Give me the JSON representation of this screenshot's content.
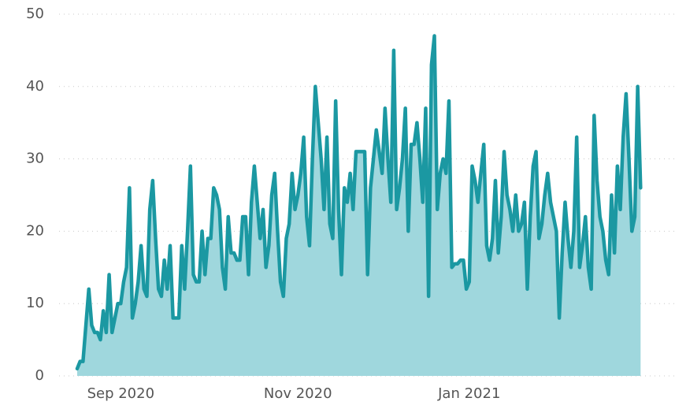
{
  "chart_data": {
    "type": "area",
    "values": [
      1,
      2,
      2,
      7,
      12,
      7,
      6,
      6,
      5,
      9,
      6,
      14,
      6,
      8,
      10,
      10,
      13,
      15,
      26,
      8,
      10,
      13,
      18,
      12,
      11,
      23,
      27,
      19,
      12,
      11,
      16,
      12,
      18,
      8,
      8,
      8,
      18,
      12,
      20,
      29,
      14,
      13,
      13,
      20,
      14,
      19,
      19,
      26,
      25,
      23,
      15,
      12,
      22,
      17,
      17,
      16,
      16,
      22,
      22,
      14,
      24,
      29,
      24,
      19,
      23,
      15,
      18,
      25,
      28,
      20,
      13,
      11,
      19,
      21,
      28,
      23,
      25,
      28,
      33,
      22,
      18,
      30,
      40,
      35,
      30,
      23,
      33,
      21,
      19,
      38,
      23,
      14,
      26,
      24,
      28,
      23,
      31,
      31,
      31,
      31,
      14,
      26,
      30,
      34,
      31,
      28,
      37,
      30,
      24,
      45,
      23,
      26,
      30,
      37,
      20,
      32,
      32,
      35,
      30,
      24,
      37,
      11,
      43,
      47,
      23,
      28,
      30,
      28,
      38,
      15,
      15.5,
      15.5,
      16,
      16,
      12,
      13,
      29,
      27,
      24,
      28,
      32,
      18,
      16,
      19,
      27,
      17,
      22,
      31,
      25,
      23,
      20,
      25,
      20,
      21,
      24,
      12,
      22,
      29,
      31,
      19,
      21,
      25,
      28,
      24,
      22,
      20,
      8,
      17,
      24,
      19,
      15,
      20,
      33,
      15,
      18,
      22,
      15,
      12,
      36,
      27,
      22,
      20,
      16,
      14,
      25,
      17,
      29,
      23,
      33,
      39,
      30,
      20,
      22,
      40,
      26
    ],
    "line_color": "#1b98a2",
    "fill_color": "#9fd7dd",
    "xlim": [
      0,
      195
    ],
    "xticks": [
      {
        "value": 15,
        "label": "Sep 2020"
      },
      {
        "value": 76,
        "label": "Nov 2020"
      },
      {
        "value": 135,
        "label": "Jan 2021"
      }
    ],
    "ylim": [
      0,
      50
    ],
    "yticks": [
      0,
      10,
      20,
      30,
      40,
      50
    ],
    "grid": true
  }
}
